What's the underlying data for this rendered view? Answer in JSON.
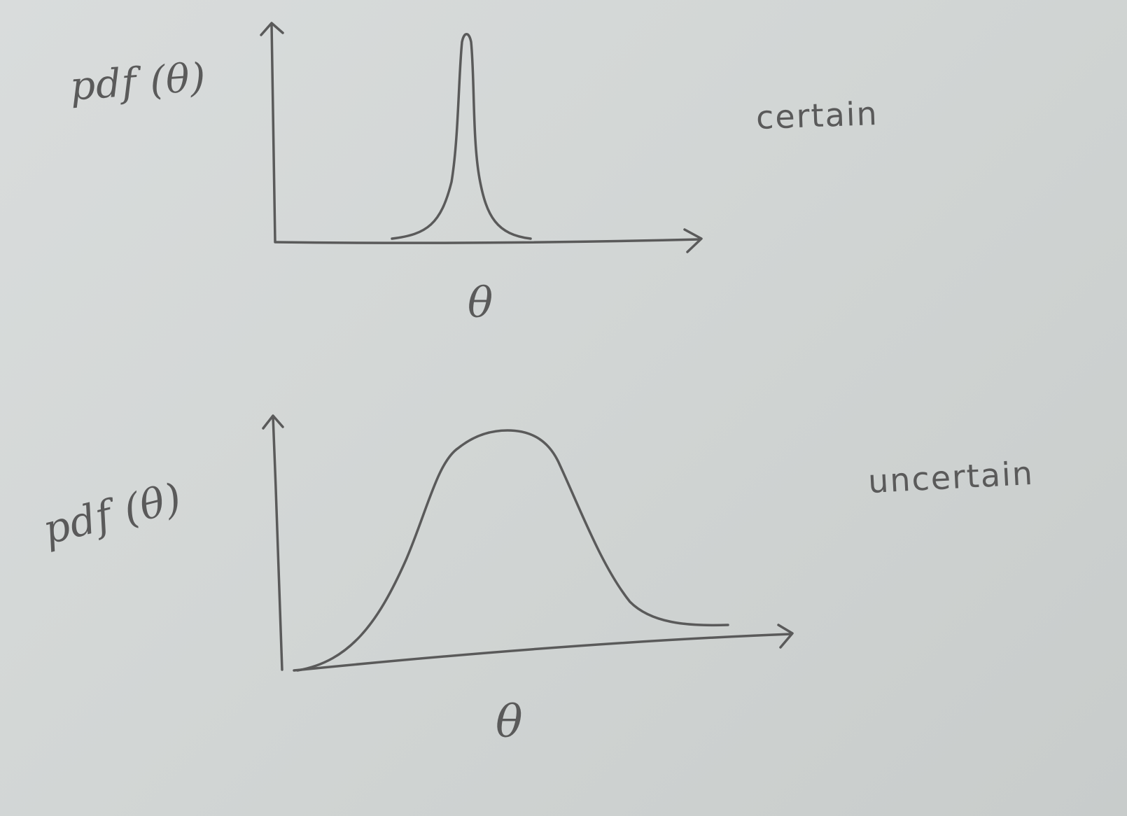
{
  "diagram": {
    "ink_color": "#5a5a5a",
    "paper_color": "#d6d9d9",
    "panels": [
      {
        "id": "top",
        "y_label": "pdf (θ)",
        "x_label": "θ",
        "note": "certain",
        "curve": "narrow sharp peak"
      },
      {
        "id": "bottom",
        "y_label": "pdf (θ)",
        "x_label": "θ",
        "note": "uncertain",
        "curve": "wide skewed hump"
      }
    ]
  }
}
